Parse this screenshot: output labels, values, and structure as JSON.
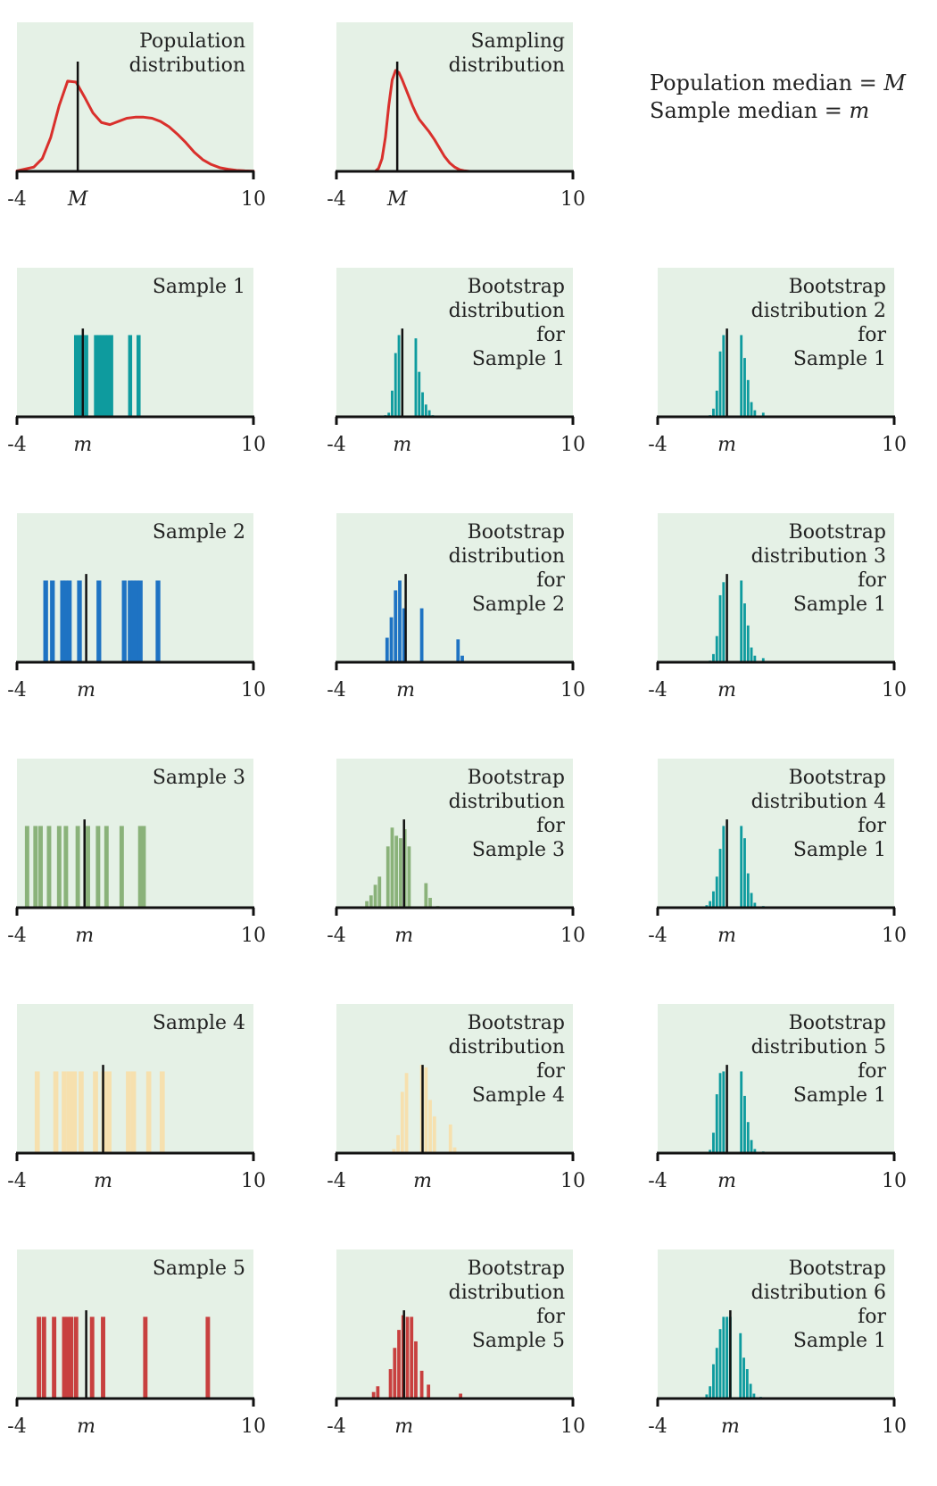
{
  "legend": {
    "line1_prefix": "Population median = ",
    "line1_symbol": "M",
    "line2_prefix": "Sample median = ",
    "line2_symbol": "m"
  },
  "colors": {
    "panel_bg": "#e5f1e6",
    "axis": "#111111",
    "median_line": "#111111",
    "red": "#d9302c",
    "teal": "#0e9b9e",
    "blue": "#1e73c3",
    "green": "#8ab27a",
    "yellow": "#f6e0ae",
    "brick": "#c8403f"
  },
  "chart_data": [
    {
      "id": "pop",
      "type": "line",
      "row": 0,
      "col": 0,
      "title": "Population\ndistribution",
      "xlim": [
        -4,
        10
      ],
      "xticks": [
        "-4",
        "10"
      ],
      "marker_label": "M",
      "median": -0.4,
      "color": "red",
      "x": [
        -4,
        -3,
        -2.5,
        -2,
        -1.5,
        -1,
        -0.5,
        0,
        0.5,
        1,
        1.5,
        2,
        2.5,
        3,
        3.5,
        4,
        4.5,
        5,
        5.5,
        6,
        6.5,
        7,
        7.5,
        8,
        8.5,
        9,
        9.5,
        10
      ],
      "y": [
        0.005,
        0.04,
        0.12,
        0.32,
        0.62,
        0.85,
        0.84,
        0.7,
        0.55,
        0.46,
        0.44,
        0.47,
        0.5,
        0.51,
        0.51,
        0.5,
        0.47,
        0.42,
        0.35,
        0.27,
        0.18,
        0.11,
        0.065,
        0.035,
        0.02,
        0.01,
        0.005,
        0.002
      ],
      "ylim": [
        0,
        1
      ]
    },
    {
      "id": "samp",
      "type": "line",
      "row": 0,
      "col": 1,
      "title": "Sampling\ndistribution",
      "xlim": [
        -4,
        10
      ],
      "xticks": [
        "-4",
        "10"
      ],
      "marker_label": "M",
      "median": -0.4,
      "color": "red",
      "x": [
        -1.7,
        -1.5,
        -1.3,
        -1.1,
        -0.9,
        -0.7,
        -0.5,
        -0.3,
        -0.1,
        0.1,
        0.3,
        0.5,
        0.7,
        0.9,
        1.2,
        1.5,
        1.8,
        2.1,
        2.4,
        2.7,
        3.0,
        3.3,
        3.6,
        3.9
      ],
      "y": [
        0.0,
        0.03,
        0.12,
        0.32,
        0.62,
        0.86,
        0.95,
        0.93,
        0.86,
        0.78,
        0.7,
        0.62,
        0.55,
        0.49,
        0.43,
        0.37,
        0.3,
        0.22,
        0.14,
        0.08,
        0.04,
        0.015,
        0.005,
        0.0
      ],
      "ylim": [
        0,
        1
      ]
    },
    {
      "id": "s1",
      "type": "bar",
      "row": 1,
      "col": 0,
      "title": "Sample 1",
      "xlim": [
        -4,
        10
      ],
      "xticks": [
        "-4",
        "10"
      ],
      "marker_label": "m",
      "median": -0.1,
      "color": "teal",
      "bar_width": 0.24,
      "x": [
        -0.5,
        -0.32,
        -0.14,
        0.1,
        0.68,
        0.86,
        1.04,
        1.22,
        1.4,
        1.58,
        2.7,
        3.2
      ],
      "values": [
        1,
        1,
        1,
        1,
        1,
        1,
        1,
        1,
        1,
        1,
        1,
        1
      ],
      "ylim": [
        0,
        1.3
      ]
    },
    {
      "id": "b1s1",
      "type": "bar",
      "row": 1,
      "col": 1,
      "title": "Bootstrap\ndistribution\nfor\nSample 1",
      "xlim": [
        -4,
        10
      ],
      "xticks": [
        "-4",
        "10"
      ],
      "marker_label": "m",
      "median": -0.1,
      "color": "teal",
      "bar_width": 0.15,
      "x": [
        -1.1,
        -0.9,
        -0.7,
        -0.5,
        -0.3,
        0.7,
        0.9,
        1.1,
        1.3,
        1.5,
        1.7
      ],
      "values": [
        0.02,
        0.05,
        0.32,
        0.78,
        1.0,
        0.96,
        0.55,
        0.3,
        0.15,
        0.08,
        0.02
      ],
      "ylim": [
        0,
        1.3
      ]
    },
    {
      "id": "b2s1",
      "type": "bar",
      "row": 1,
      "col": 2,
      "title": "Bootstrap\ndistribution 2\nfor\nSample 1",
      "xlim": [
        -4,
        10
      ],
      "xticks": [
        "-4",
        "10"
      ],
      "marker_label": "m",
      "median": 0.1,
      "color": "teal",
      "bar_width": 0.15,
      "x": [
        -0.9,
        -0.7,
        -0.5,
        -0.3,
        -0.1,
        0.95,
        1.15,
        1.35,
        1.55,
        1.75,
        2.25
      ],
      "values": [
        0.02,
        0.1,
        0.32,
        0.8,
        1.0,
        1.0,
        0.72,
        0.45,
        0.18,
        0.08,
        0.05
      ],
      "ylim": [
        0,
        1.3
      ]
    },
    {
      "id": "s2",
      "type": "bar",
      "row": 2,
      "col": 0,
      "title": "Sample 2",
      "xlim": [
        -4,
        10
      ],
      "xticks": [
        "-4",
        "10"
      ],
      "marker_label": "m",
      "median": 0.1,
      "color": "blue",
      "bar_width": 0.28,
      "x": [
        -2.3,
        -1.9,
        -1.3,
        -1.1,
        -0.9,
        -0.3,
        0.85,
        2.35,
        2.7,
        2.9,
        3.1,
        3.3,
        4.35
      ],
      "values": [
        1,
        1,
        1,
        1,
        1,
        1,
        1,
        1,
        1,
        1,
        1,
        1,
        1
      ],
      "ylim": [
        0,
        1.3
      ]
    },
    {
      "id": "b1s2",
      "type": "bar",
      "row": 2,
      "col": 1,
      "title": "Bootstrap\ndistribution\nfor\nSample 2",
      "xlim": [
        -4,
        10
      ],
      "xticks": [
        "-4",
        "10"
      ],
      "marker_label": "m",
      "median": 0.1,
      "color": "blue",
      "bar_width": 0.2,
      "x": [
        -1.0,
        -0.75,
        -0.5,
        -0.25,
        0.0,
        1.05,
        3.2,
        3.45
      ],
      "values": [
        0.3,
        0.55,
        0.88,
        1.0,
        0.66,
        0.66,
        0.28,
        0.08
      ],
      "ylim": [
        0,
        1.3
      ]
    },
    {
      "id": "b3s1",
      "type": "bar",
      "row": 2,
      "col": 2,
      "title": "Bootstrap\ndistribution 3\nfor\nSample 1",
      "xlim": [
        -4,
        10
      ],
      "xticks": [
        "-4",
        "10"
      ],
      "marker_label": "m",
      "median": 0.1,
      "color": "teal",
      "bar_width": 0.15,
      "x": [
        -0.9,
        -0.7,
        -0.5,
        -0.3,
        -0.1,
        0.95,
        1.15,
        1.35,
        1.55,
        1.75,
        2.25
      ],
      "values": [
        0.02,
        0.1,
        0.32,
        0.82,
        0.98,
        1.0,
        0.72,
        0.45,
        0.18,
        0.08,
        0.05
      ],
      "ylim": [
        0,
        1.3
      ]
    },
    {
      "id": "s3",
      "type": "bar",
      "row": 3,
      "col": 0,
      "title": "Sample 3",
      "xlim": [
        -4,
        10
      ],
      "xticks": [
        "-4",
        "10"
      ],
      "marker_label": "m",
      "median": 0.0,
      "color": "green",
      "bar_width": 0.26,
      "x": [
        -3.4,
        -2.9,
        -2.6,
        -2.1,
        -1.5,
        -1.1,
        -0.4,
        0.2,
        0.8,
        1.3,
        2.2,
        3.3,
        3.5
      ],
      "values": [
        1,
        1,
        1,
        1,
        1,
        1,
        1,
        1,
        1,
        1,
        1,
        1,
        1
      ],
      "ylim": [
        0,
        1.3
      ]
    },
    {
      "id": "b1s3",
      "type": "bar",
      "row": 3,
      "col": 1,
      "title": "Bootstrap\ndistribution\nfor\nSample 3",
      "xlim": [
        -4,
        10
      ],
      "xticks": [
        "-4",
        "10"
      ],
      "marker_label": "m",
      "median": 0.0,
      "color": "green",
      "bar_width": 0.2,
      "x": [
        -2.2,
        -1.95,
        -1.7,
        -1.45,
        -0.95,
        -0.7,
        -0.45,
        -0.2,
        0.05,
        0.3,
        1.3,
        1.55,
        2.0
      ],
      "values": [
        0.08,
        0.15,
        0.28,
        0.38,
        0.75,
        0.98,
        0.88,
        0.85,
        0.96,
        0.75,
        0.3,
        0.12,
        0.02
      ],
      "ylim": [
        0,
        1.3
      ]
    },
    {
      "id": "b4s1",
      "type": "bar",
      "row": 3,
      "col": 2,
      "title": "Bootstrap\ndistribution 4\nfor\nSample 1",
      "xlim": [
        -4,
        10
      ],
      "xticks": [
        "-4",
        "10"
      ],
      "marker_label": "m",
      "median": 0.1,
      "color": "teal",
      "bar_width": 0.15,
      "x": [
        -1.1,
        -0.9,
        -0.7,
        -0.5,
        -0.3,
        -0.1,
        0.95,
        1.15,
        1.35,
        1.55,
        1.75,
        2.25
      ],
      "values": [
        0.03,
        0.08,
        0.2,
        0.38,
        0.72,
        1.0,
        1.0,
        0.85,
        0.42,
        0.18,
        0.06,
        0.02
      ],
      "ylim": [
        0,
        1.3
      ]
    },
    {
      "id": "s4",
      "type": "bar",
      "row": 4,
      "col": 0,
      "title": "Sample 4",
      "xlim": [
        -4,
        10
      ],
      "xticks": [
        "-4",
        "10"
      ],
      "marker_label": "m",
      "median": 1.1,
      "color": "yellow",
      "bar_width": 0.3,
      "x": [
        -2.8,
        -1.7,
        -1.2,
        -0.9,
        -0.6,
        -0.2,
        0.65,
        1.15,
        1.45,
        2.6,
        2.9,
        3.8,
        4.6
      ],
      "values": [
        1,
        1,
        1,
        1,
        1,
        1,
        1,
        1,
        1,
        1,
        1,
        1,
        1
      ],
      "ylim": [
        0,
        1.3
      ]
    },
    {
      "id": "b1s4",
      "type": "bar",
      "row": 4,
      "col": 1,
      "title": "Bootstrap\ndistribution\nfor\nSample 4",
      "xlim": [
        -4,
        10
      ],
      "xticks": [
        "-4",
        "10"
      ],
      "marker_label": "m",
      "median": 1.1,
      "color": "yellow",
      "bar_width": 0.2,
      "x": [
        -0.6,
        -0.35,
        -0.1,
        0.15,
        1.05,
        1.3,
        1.55,
        1.8,
        2.75,
        3.0
      ],
      "values": [
        0.05,
        0.22,
        0.75,
        0.98,
        1.08,
        1.05,
        0.65,
        0.45,
        0.35,
        0.07
      ],
      "ylim": [
        0,
        1.3
      ]
    },
    {
      "id": "b5s1",
      "type": "bar",
      "row": 4,
      "col": 2,
      "title": "Bootstrap\ndistribution 5\nfor\nSample 1",
      "xlim": [
        -4,
        10
      ],
      "xticks": [
        "-4",
        "10"
      ],
      "marker_label": "m",
      "median": 0.1,
      "color": "teal",
      "bar_width": 0.15,
      "x": [
        -0.9,
        -0.7,
        -0.5,
        -0.3,
        -0.1,
        0.95,
        1.15,
        1.35,
        1.55,
        1.75,
        2.25
      ],
      "values": [
        0.04,
        0.25,
        0.72,
        0.98,
        1.0,
        1.0,
        0.7,
        0.38,
        0.16,
        0.05,
        0.02
      ],
      "ylim": [
        0,
        1.3
      ]
    },
    {
      "id": "s5",
      "type": "bar",
      "row": 5,
      "col": 0,
      "title": "Sample 5",
      "xlim": [
        -4,
        10
      ],
      "xticks": [
        "-4",
        "10"
      ],
      "marker_label": "m",
      "median": 0.1,
      "color": "brick",
      "bar_width": 0.26,
      "x": [
        -2.7,
        -2.4,
        -1.8,
        -1.2,
        -1.0,
        -0.8,
        -0.5,
        0.45,
        1.1,
        3.6,
        7.3
      ],
      "values": [
        1,
        1,
        1,
        1,
        1,
        1,
        1,
        1,
        1,
        1,
        1
      ],
      "ylim": [
        0,
        1.3
      ]
    },
    {
      "id": "b1s5",
      "type": "bar",
      "row": 5,
      "col": 1,
      "title": "Bootstrap\ndistribution\nfor\nSample 5",
      "xlim": [
        -4,
        10
      ],
      "xticks": [
        "-4",
        "10"
      ],
      "marker_label": "m",
      "median": 0.0,
      "color": "brick",
      "bar_width": 0.2,
      "x": [
        -1.8,
        -1.55,
        -0.8,
        -0.55,
        -0.3,
        -0.05,
        0.2,
        0.45,
        0.7,
        1.05,
        1.45,
        3.35
      ],
      "values": [
        0.08,
        0.15,
        0.36,
        0.62,
        0.84,
        1.02,
        1.0,
        1.0,
        0.7,
        0.34,
        0.17,
        0.06
      ],
      "ylim": [
        0,
        1.3
      ]
    },
    {
      "id": "b6s1",
      "type": "bar",
      "row": 5,
      "col": 2,
      "title": "Bootstrap\ndistribution 6\nfor\nSample 1",
      "xlim": [
        -4,
        10
      ],
      "xticks": [
        "-4",
        "10"
      ],
      "marker_label": "m",
      "median": 0.3,
      "color": "teal",
      "bar_width": 0.15,
      "x": [
        -1.1,
        -0.9,
        -0.7,
        -0.5,
        -0.3,
        -0.1,
        0.1,
        0.3,
        0.9,
        1.1,
        1.3,
        1.5,
        1.7,
        2.1
      ],
      "values": [
        0.05,
        0.15,
        0.42,
        0.62,
        0.85,
        1.0,
        1.0,
        1.0,
        0.8,
        0.5,
        0.36,
        0.18,
        0.06,
        0.02
      ],
      "ylim": [
        0,
        1.3
      ]
    }
  ]
}
